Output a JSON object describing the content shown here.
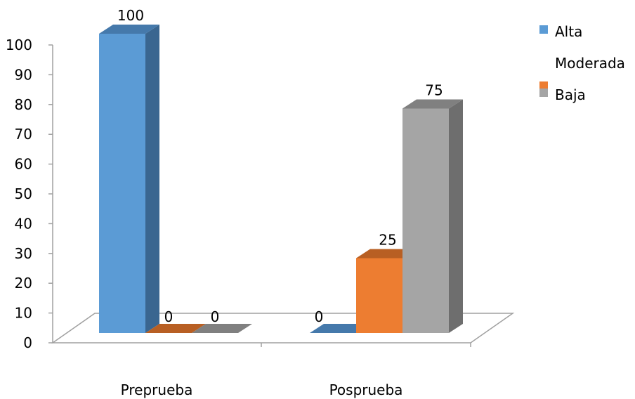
{
  "chart_data": {
    "type": "bar",
    "title": "",
    "xlabel": "",
    "ylabel": "",
    "categories": [
      "Preprueba",
      "Posprueba"
    ],
    "series": [
      {
        "name": "Alta",
        "values": [
          100,
          0
        ],
        "color": "#5B9BD5",
        "side_color": "#3A6690",
        "top_color": "#4579AB"
      },
      {
        "name": "Moderada",
        "values": [
          0,
          25
        ],
        "color": "#ED7D31",
        "side_color": "#9E531F",
        "top_color": "#B85F23"
      },
      {
        "name": "Baja",
        "values": [
          0,
          75
        ],
        "color": "#A5A5A5",
        "side_color": "#6E6E6E",
        "top_color": "#808080"
      }
    ],
    "ylim": [
      0,
      100
    ],
    "yticks": [
      0,
      10,
      20,
      30,
      40,
      50,
      60,
      70,
      80,
      90,
      100
    ],
    "data_labels": [
      [
        "100",
        "0"
      ],
      [
        "0",
        "25"
      ],
      [
        "0",
        "75"
      ]
    ],
    "legend_position": "right",
    "legend_swatches_shown": [
      "Alta",
      "Baja"
    ],
    "grid": false,
    "chart_style": "3d-clustered-column"
  }
}
